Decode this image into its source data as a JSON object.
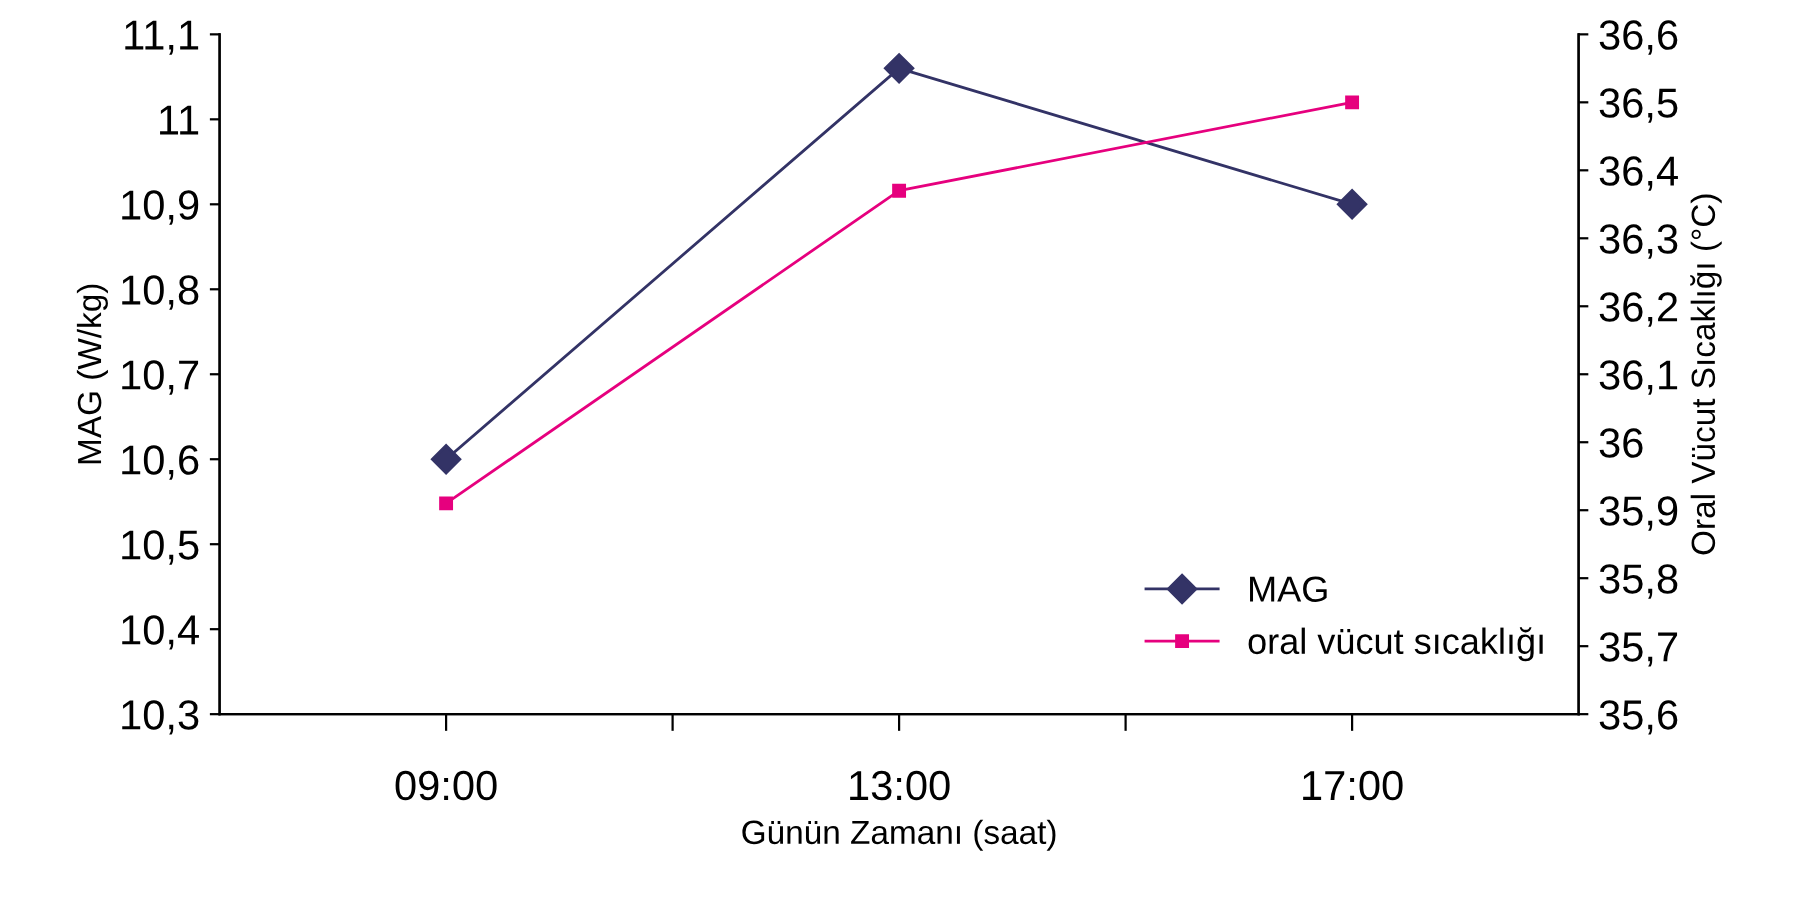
{
  "chart_data": {
    "type": "line",
    "xlabel": "Günün Zamanı (saat)",
    "ylabel": "MAG (W/kg)",
    "y2label": "Oral Vücut Sıcaklığı (°C)",
    "x": [
      9,
      13,
      17
    ],
    "xlim": [
      7,
      19
    ],
    "xticks": [
      {
        "value": 9,
        "label": "09:00"
      },
      {
        "value": 11,
        "label": null
      },
      {
        "value": 13,
        "label": "13:00"
      },
      {
        "value": 15,
        "label": null
      },
      {
        "value": 17,
        "label": "17:00"
      }
    ],
    "series": [
      {
        "name": "MAG",
        "color": "#333366",
        "marker": "diamond",
        "values": [
          10.6,
          11.06,
          10.9
        ]
      },
      {
        "name": "oral vücut sıcaklığı",
        "color": "#e6007e",
        "marker": "square",
        "axis": "y2",
        "values": [
          35.91,
          36.37,
          36.5
        ]
      }
    ],
    "ylim": [
      10.3,
      11.1
    ],
    "yticks": [
      {
        "value": 10.3,
        "label": "10,3"
      },
      {
        "value": 10.4,
        "label": "10,4"
      },
      {
        "value": 10.5,
        "label": "10,5"
      },
      {
        "value": 10.6,
        "label": "10,6"
      },
      {
        "value": 10.7,
        "label": "10,7"
      },
      {
        "value": 10.8,
        "label": "10,8"
      },
      {
        "value": 10.9,
        "label": "10,9"
      },
      {
        "value": 11,
        "label": "11"
      },
      {
        "value": 11.1,
        "label": "11,1"
      }
    ],
    "y2lim": [
      35.6,
      36.6
    ],
    "y2ticks": [
      {
        "value": 35.6,
        "label": "35,6"
      },
      {
        "value": 35.7,
        "label": "35,7"
      },
      {
        "value": 35.8,
        "label": "35,8"
      },
      {
        "value": 35.9,
        "label": "35,9"
      },
      {
        "value": 36,
        "label": "36"
      },
      {
        "value": 36.1,
        "label": "36,1"
      },
      {
        "value": 36.2,
        "label": "36,2"
      },
      {
        "value": 36.3,
        "label": "36,3"
      },
      {
        "value": 36.4,
        "label": "36,4"
      },
      {
        "value": 36.5,
        "label": "36,5"
      },
      {
        "value": 36.6,
        "label": "36,6"
      }
    ],
    "grid": false,
    "legend": "bottom right",
    "line_style": "solid"
  }
}
